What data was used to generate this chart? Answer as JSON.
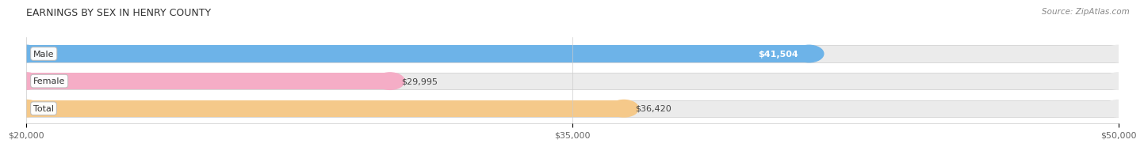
{
  "title": "EARNINGS BY SEX IN HENRY COUNTY",
  "source": "Source: ZipAtlas.com",
  "categories": [
    "Male",
    "Female",
    "Total"
  ],
  "values": [
    41504,
    29995,
    36420
  ],
  "labels": [
    "$41,504",
    "$29,995",
    "$36,420"
  ],
  "bar_colors": [
    "#6db3e8",
    "#f5adc6",
    "#f5c98a"
  ],
  "track_color": "#ebebeb",
  "xmin": 20000,
  "xmax": 50000,
  "xticks": [
    20000,
    35000,
    50000
  ],
  "xticklabels": [
    "$20,000",
    "$35,000",
    "$50,000"
  ],
  "title_fontsize": 9,
  "tick_fontsize": 8,
  "bar_label_fontsize": 8,
  "cat_label_fontsize": 8,
  "source_fontsize": 7.5,
  "background_color": "#ffffff"
}
